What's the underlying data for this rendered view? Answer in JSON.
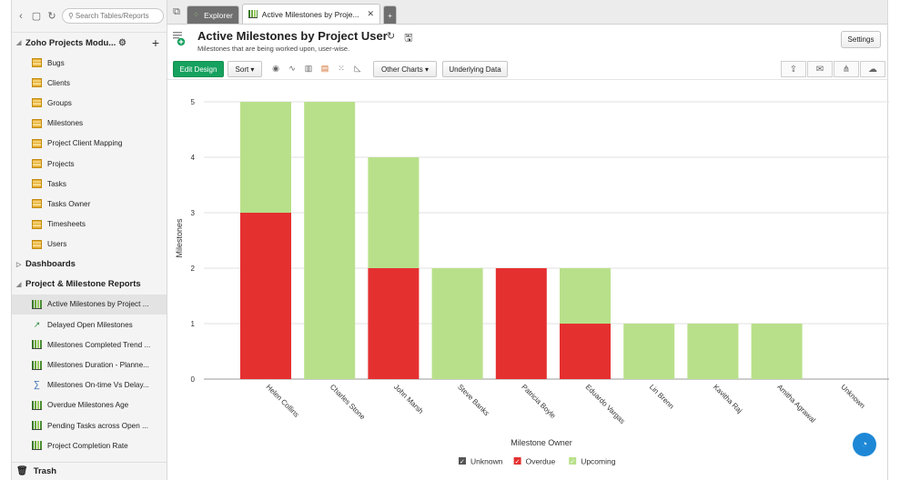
{
  "sidebar": {
    "search_placeholder": "Search Tables/Reports",
    "workspace_title": "Zoho Projects Modu...",
    "tables": [
      {
        "label": "Bugs"
      },
      {
        "label": "Clients"
      },
      {
        "label": "Groups"
      },
      {
        "label": "Milestones"
      },
      {
        "label": "Project Client Mapping"
      },
      {
        "label": "Projects"
      },
      {
        "label": "Tasks"
      },
      {
        "label": "Tasks Owner"
      },
      {
        "label": "Timesheets"
      },
      {
        "label": "Users"
      }
    ],
    "dashboards_label": "Dashboards",
    "reports_group_label": "Project & Milestone Reports",
    "reports": [
      {
        "label": "Active Milestones by Project ...",
        "icon": "bar-chart-icon",
        "selected": true
      },
      {
        "label": "Delayed Open Milestones",
        "icon": "arrows-icon"
      },
      {
        "label": "Milestones Completed Trend ...",
        "icon": "bar-chart-icon"
      },
      {
        "label": "Milestones Duration - Planne...",
        "icon": "bar-chart-icon"
      },
      {
        "label": "Milestones On-time Vs Delay...",
        "icon": "sigma-icon"
      },
      {
        "label": "Overdue Milestones Age",
        "icon": "bar-chart-icon"
      },
      {
        "label": "Pending Tasks across Open ...",
        "icon": "bar-chart-icon"
      },
      {
        "label": "Project Completion Rate",
        "icon": "bar-chart-icon"
      }
    ],
    "trash_label": "Trash"
  },
  "tabs": [
    {
      "label": "Explorer",
      "active": false
    },
    {
      "label": "Active Milestones by Proje...",
      "active": true
    },
    {
      "label": "+",
      "active": false
    }
  ],
  "header": {
    "title": "Active Milestones by Project User",
    "subtitle": "Milestones that are being worked upon, user-wise.",
    "settings_label": "Settings"
  },
  "toolbar": {
    "edit_design_label": "Edit Design",
    "sort_label": "Sort",
    "other_charts_label": "Other Charts",
    "underlying_data_label": "Underlying Data",
    "accent_color": "#17a15f"
  },
  "chart_data": {
    "type": "bar",
    "stacked": true,
    "xlabel": "Milestone Owner",
    "ylabel": "Milestones",
    "ylim": [
      0,
      5
    ],
    "yticks": [
      0,
      1,
      2,
      3,
      4,
      5
    ],
    "categories": [
      "Helen Collins",
      "Charles Stone",
      "John Marsh",
      "Steve Banks",
      "Patricia Boyle",
      "Eduardo Vargas",
      "Lin Brenn",
      "Kavitha Raj",
      "Amitha Agrawal",
      "Unknown"
    ],
    "series": [
      {
        "name": "Unknown",
        "color": "#555555",
        "values": [
          0,
          0,
          0,
          0,
          0,
          0,
          0,
          0,
          0,
          0
        ]
      },
      {
        "name": "Overdue",
        "color": "#e53030",
        "values": [
          3,
          0,
          2,
          0,
          2,
          1,
          0,
          0,
          0,
          0
        ]
      },
      {
        "name": "Upcoming",
        "color": "#b8e08a",
        "values": [
          2,
          5,
          2,
          2,
          0,
          1,
          1,
          1,
          1,
          0
        ]
      }
    ],
    "grid": true,
    "legend_position": "bottom-center"
  }
}
